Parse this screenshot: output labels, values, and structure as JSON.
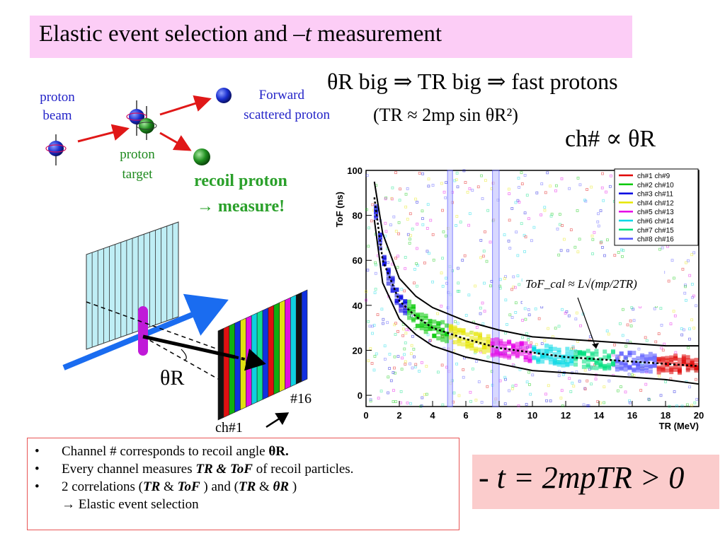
{
  "title": {
    "prefix": "Elastic event selection and ",
    "t": "–t",
    "suffix": " measurement"
  },
  "schematic": {
    "proton_beam_line1": "proton",
    "proton_beam_line2": "beam",
    "forward_line1": "Forward",
    "forward_line2": "scattered proton",
    "target_line1": "proton",
    "target_line2": "target",
    "recoil_line1": "recoil proton",
    "recoil_line2": "→ measure!"
  },
  "relations": {
    "theta_r_line": "θR big ⇒ TR big ⇒ fast protons",
    "tr_approx": "(TR ≈ 2mp sin θR²)",
    "ch_prop": "ch# ∝ θR"
  },
  "detector": {
    "theta_label": "θR",
    "ch1_label": "ch#1",
    "ch16_label": "#16",
    "strip_colors": [
      "#111111",
      "#e01010",
      "#10b010",
      "#1030e0",
      "#e0e010",
      "#e010e0",
      "#10d0e0",
      "#10e090",
      "#1030e0",
      "#e01010",
      "#10b010",
      "#e0e010",
      "#e010e0",
      "#10d0e0",
      "#111111",
      "#1030e0"
    ]
  },
  "chart_data": {
    "type": "scatter",
    "xlabel": "TR (MeV)",
    "ylabel": "ToF (ns)",
    "xlim": [
      0,
      20
    ],
    "ylim": [
      -5,
      100
    ],
    "xticks": [
      0,
      2,
      4,
      6,
      8,
      10,
      12,
      14,
      16,
      18,
      20
    ],
    "yticks": [
      0,
      20,
      40,
      60,
      80,
      100
    ],
    "legend": [
      {
        "label": "ch#1 ch#9",
        "color": "#e00000"
      },
      {
        "label": "ch#2 ch#10",
        "color": "#00c800"
      },
      {
        "label": "ch#3 ch#11",
        "color": "#0000e0"
      },
      {
        "label": "ch#4 ch#12",
        "color": "#e6e600"
      },
      {
        "label": "ch#5 ch#13",
        "color": "#e600e6"
      },
      {
        "label": "ch#6 ch#14",
        "color": "#00d8e6"
      },
      {
        "label": "ch#7 ch#15",
        "color": "#00e080"
      },
      {
        "label": "ch#8 ch#16",
        "color": "#5050ff"
      }
    ],
    "annotation": "ToF_cal ≈ L√(mp/2TR)",
    "curves": {
      "center": [
        [
          0.5,
          88
        ],
        [
          1,
          60
        ],
        [
          2,
          42
        ],
        [
          3,
          35
        ],
        [
          4,
          30
        ],
        [
          6,
          25
        ],
        [
          8,
          21
        ],
        [
          10,
          19
        ],
        [
          12,
          17
        ],
        [
          14,
          16
        ],
        [
          16,
          15
        ],
        [
          18,
          14
        ],
        [
          20,
          13
        ]
      ],
      "upper": [
        [
          0.5,
          95
        ],
        [
          1,
          72
        ],
        [
          2,
          52
        ],
        [
          3,
          44
        ],
        [
          4,
          39
        ],
        [
          6,
          33
        ],
        [
          8,
          29
        ],
        [
          10,
          26
        ],
        [
          12,
          25
        ],
        [
          14,
          24
        ],
        [
          16,
          23
        ],
        [
          18,
          22
        ],
        [
          20,
          22
        ]
      ],
      "lower": [
        [
          0.5,
          78
        ],
        [
          1,
          50
        ],
        [
          2,
          34
        ],
        [
          3,
          27
        ],
        [
          4,
          22
        ],
        [
          6,
          17
        ],
        [
          8,
          14
        ],
        [
          10,
          11
        ],
        [
          12,
          10
        ],
        [
          14,
          9
        ],
        [
          16,
          8
        ],
        [
          18,
          7
        ],
        [
          20,
          5
        ]
      ]
    }
  },
  "bullets": [
    {
      "text": "Channel # corresponds to recoil angle ",
      "em": "θR."
    },
    {
      "text": "Every channel measures ",
      "em": "TR & ToF",
      "tail": " of recoil particles."
    },
    {
      "text": "2 correlations (",
      "em": "TR",
      "mid": " & ",
      "em2": "ToF",
      "mid2": " ) and (",
      "em3": "TR",
      "mid3": " & ",
      "em4": "θR",
      "tail": " )"
    },
    {
      "text": "→ Elastic event selection"
    }
  ],
  "formula": "- t = 2mpTR > 0"
}
